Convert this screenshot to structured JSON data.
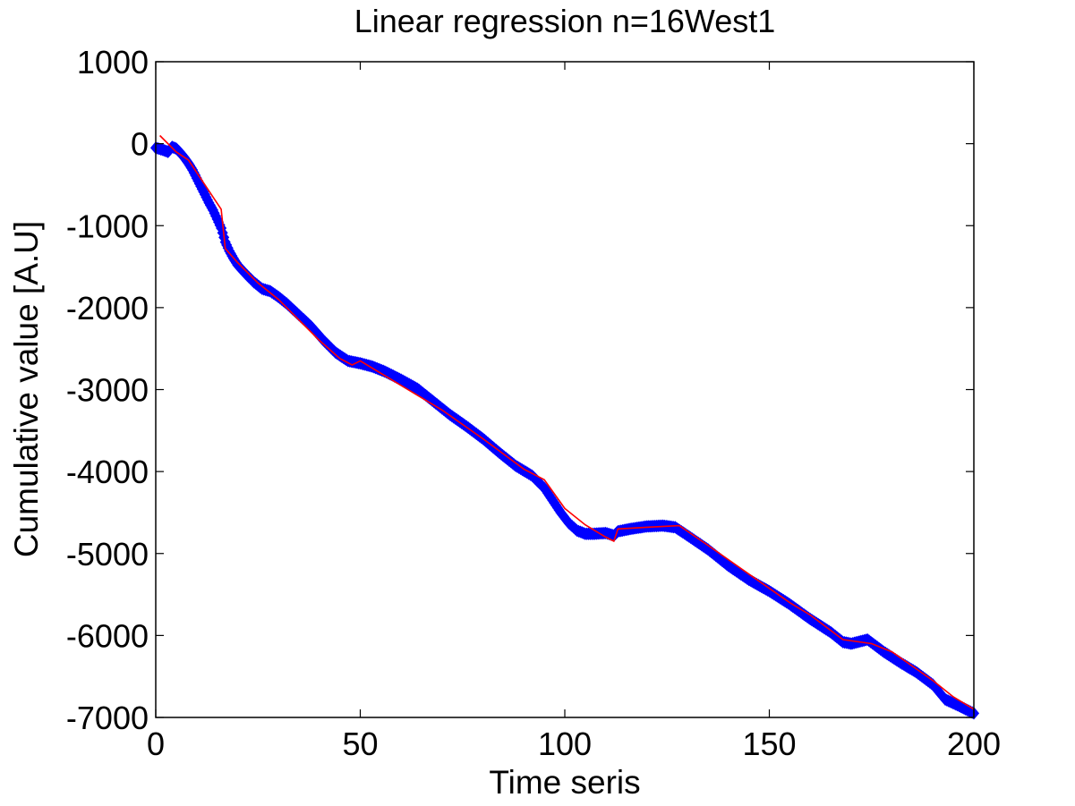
{
  "chart_data": {
    "type": "scatter",
    "title": "Linear regression n=16West1",
    "xlabel": "Time seris",
    "ylabel": "Cumulative value [A.U]",
    "xlim": [
      0,
      200
    ],
    "ylim": [
      -7000,
      1000
    ],
    "xticks": [
      "0",
      "50",
      "100",
      "150",
      "200"
    ],
    "yticks": [
      "1000",
      "0",
      "-1000",
      "-2000",
      "-3000",
      "-4000",
      "-5000",
      "-6000",
      "-7000"
    ],
    "grid": false,
    "colors": {
      "data": "#0000ff",
      "fit": "#ff0000",
      "axes": "#000000"
    },
    "series": [
      {
        "marker": "diamond",
        "color": "#0000ff",
        "x": [
          0,
          2,
          3,
          4,
          5,
          6,
          7,
          8,
          9,
          10,
          11,
          12,
          13,
          14,
          15,
          16,
          17,
          18,
          19,
          20,
          22,
          24,
          26,
          28,
          30,
          32,
          35,
          38,
          41,
          44,
          47,
          50,
          53,
          56,
          60,
          64,
          68,
          72,
          76,
          80,
          84,
          88,
          92,
          95,
          97,
          99,
          101,
          103,
          105,
          107,
          110,
          112,
          113,
          116,
          120,
          124,
          127,
          130,
          135,
          140,
          145,
          150,
          155,
          160,
          165,
          168,
          170,
          174,
          178,
          182,
          186,
          190,
          193,
          196,
          200
        ],
        "y": [
          -50,
          -80,
          -100,
          -40,
          -60,
          -110,
          -170,
          -240,
          -320,
          -420,
          -520,
          -620,
          -720,
          -810,
          -920,
          -1030,
          -1200,
          -1310,
          -1400,
          -1480,
          -1590,
          -1690,
          -1770,
          -1800,
          -1870,
          -1950,
          -2090,
          -2230,
          -2400,
          -2550,
          -2650,
          -2680,
          -2720,
          -2780,
          -2880,
          -2990,
          -3150,
          -3310,
          -3450,
          -3600,
          -3770,
          -3930,
          -4050,
          -4200,
          -4350,
          -4500,
          -4630,
          -4720,
          -4760,
          -4760,
          -4750,
          -4780,
          -4730,
          -4700,
          -4670,
          -4660,
          -4680,
          -4780,
          -4950,
          -5150,
          -5320,
          -5460,
          -5620,
          -5800,
          -5960,
          -6080,
          -6100,
          -6050,
          -6200,
          -6330,
          -6450,
          -6600,
          -6780,
          -6850,
          -6950
        ]
      },
      {
        "marker": "line",
        "color": "#ff0000",
        "x": [
          1,
          5,
          8,
          12,
          16,
          17,
          20,
          25,
          30,
          35,
          40,
          45,
          48,
          50,
          60,
          70,
          80,
          90,
          95,
          100,
          105,
          110,
          112,
          113,
          120,
          128,
          135,
          145,
          155,
          160,
          168,
          175,
          180,
          190,
          195,
          200
        ],
        "y": [
          100,
          -100,
          -200,
          -500,
          -800,
          -1280,
          -1450,
          -1700,
          -1900,
          -2150,
          -2400,
          -2620,
          -2700,
          -2650,
          -2950,
          -3250,
          -3600,
          -3970,
          -4100,
          -4450,
          -4650,
          -4800,
          -4850,
          -4700,
          -4680,
          -4660,
          -4900,
          -5250,
          -5600,
          -5750,
          -6050,
          -6100,
          -6200,
          -6550,
          -6750,
          -6900
        ]
      }
    ]
  }
}
